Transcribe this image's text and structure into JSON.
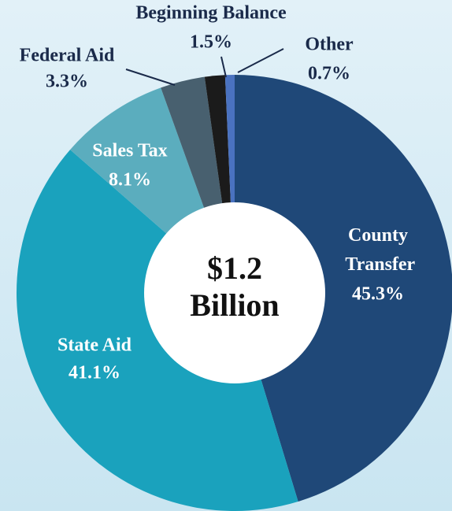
{
  "chart_data": {
    "type": "donut",
    "categories": [
      "County Transfer",
      "State Aid",
      "Sales Tax",
      "Federal Aid",
      "Beginning Balance",
      "Other"
    ],
    "values": [
      45.3,
      41.1,
      8.1,
      3.3,
      1.5,
      0.7
    ],
    "value_labels": [
      "45.3%",
      "41.1%",
      "8.1%",
      "3.3%",
      "1.5%",
      "0.7%"
    ],
    "colors": [
      "#1f4878",
      "#1aa2bd",
      "#5badbe",
      "#48606f",
      "#1b1b1b",
      "#4a72c0"
    ],
    "center_label": [
      "$1.2",
      "Billion"
    ]
  }
}
